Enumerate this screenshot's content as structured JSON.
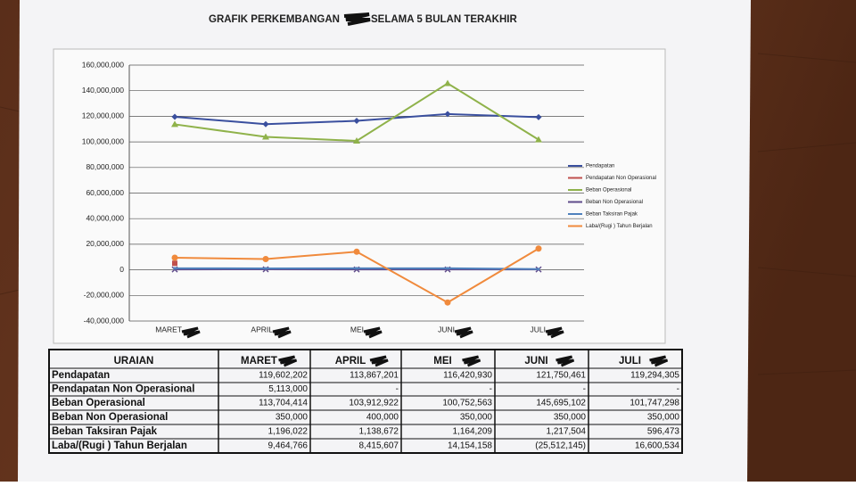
{
  "chart_data": {
    "type": "line",
    "title_parts": [
      "GRAFIK PERKEMBANGAN",
      "SELAMA 5 BULAN TERAKHIR"
    ],
    "categories": [
      "MARET",
      "APRIL",
      "MEI",
      "JUNI",
      "JULI"
    ],
    "series": [
      {
        "name": "Pendapatan",
        "color": "#3a4f9e",
        "marker": "diamond",
        "values": [
          119602202,
          113867201,
          116420930,
          121750461,
          119294305
        ]
      },
      {
        "name": "Pendapatan Non Operasional",
        "color": "#c0504d",
        "marker": "square",
        "values": [
          5113000,
          null,
          null,
          null,
          null
        ]
      },
      {
        "name": "Beban Operasional",
        "color": "#8fb24a",
        "marker": "triangle",
        "values": [
          113704414,
          103912922,
          100752563,
          145695102,
          101747298
        ]
      },
      {
        "name": "Beban Non Operasional",
        "color": "#5f4b8b",
        "marker": "x",
        "values": [
          350000,
          400000,
          350000,
          350000,
          350000
        ]
      },
      {
        "name": "Beban Taksiran Pajak",
        "color": "#4f81bd",
        "marker": "none",
        "values": [
          1196022,
          1138672,
          1164209,
          1217504,
          596473
        ]
      },
      {
        "name": "Laba/(Rugi ) Tahun Berjalan",
        "color": "#f08a3c",
        "marker": "circle",
        "values": [
          9464766,
          8415607,
          14154158,
          -25512145,
          16600534
        ]
      }
    ],
    "ylim": [
      -40000000,
      160000000
    ],
    "yticks": [
      {
        "value": -40000000,
        "label": "-40,000,000"
      },
      {
        "value": -20000000,
        "label": "-20,000,000"
      },
      0,
      {
        "value": 20000000,
        "label": "20,000,000"
      },
      {
        "value": 40000000,
        "label": "40,000,000"
      },
      {
        "value": 60000000,
        "label": "60,000,000"
      },
      {
        "value": 80000000,
        "label": "80,000,000"
      },
      {
        "value": 100000000,
        "label": "100,000,000"
      },
      {
        "value": 120000000,
        "label": "120,000,000"
      },
      {
        "value": 140000000,
        "label": "140,000,000"
      },
      {
        "value": 160000000,
        "label": "160,000,000"
      }
    ],
    "grid": true,
    "legend": "right"
  },
  "table": {
    "header": [
      "URAIAN",
      "MARET",
      "APRIL",
      "MEI",
      "JUNI",
      "JULI"
    ],
    "rows": [
      [
        "Pendapatan",
        "119,602,202",
        "113,867,201",
        "116,420,930",
        "121,750,461",
        "119,294,305"
      ],
      [
        "Pendapatan Non Operasional",
        "5,113,000",
        "-",
        "-",
        "-",
        "-"
      ],
      [
        "Beban Operasional",
        "113,704,414",
        "103,912,922",
        "100,752,563",
        "145,695,102",
        "101,747,298"
      ],
      [
        "Beban Non Operasional",
        "350,000",
        "400,000",
        "350,000",
        "350,000",
        "350,000"
      ],
      [
        "Beban Taksiran Pajak",
        "1,196,022",
        "1,138,672",
        "1,164,209",
        "1,217,504",
        "596,473"
      ],
      [
        "Laba/(Rugi ) Tahun Berjalan",
        "9,464,766",
        "8,415,607",
        "14,154,158",
        "(25,512,145)",
        "16,600,534"
      ]
    ]
  }
}
